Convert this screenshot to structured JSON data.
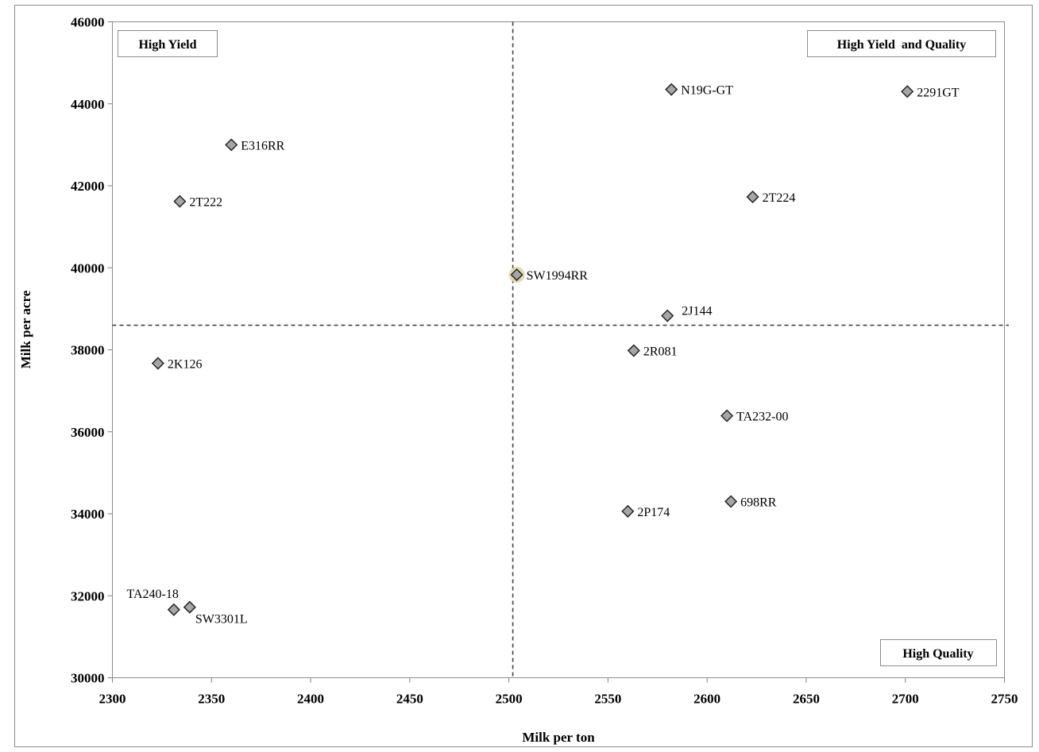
{
  "chart_data": {
    "type": "scatter",
    "xlabel": "Milk per ton",
    "ylabel": "Milk per acre",
    "xlim": [
      2300,
      2750
    ],
    "ylim": [
      30000,
      46000
    ],
    "xticks": [
      2300,
      2350,
      2400,
      2450,
      2500,
      2550,
      2600,
      2650,
      2700,
      2750
    ],
    "yticks": [
      30000,
      32000,
      34000,
      36000,
      38000,
      40000,
      42000,
      44000,
      46000
    ],
    "grid": false,
    "reference_lines": {
      "x": 2502,
      "y": 38600
    },
    "quadrant_labels": {
      "top_left": "High Yield",
      "top_right": "High Yield  and Quality",
      "bottom_right": "High Quality"
    },
    "marker": "diamond",
    "marker_color": "#a6a6a6",
    "highlight_color": "#e0d6a8",
    "points": [
      {
        "label": "N19G-GT",
        "x": 2582,
        "y": 44350,
        "label_pos": "right"
      },
      {
        "label": "2291GT",
        "x": 2701,
        "y": 44300,
        "label_pos": "right"
      },
      {
        "label": "E316RR",
        "x": 2360,
        "y": 43000,
        "label_pos": "right"
      },
      {
        "label": "2T222",
        "x": 2334,
        "y": 41620,
        "label_pos": "right"
      },
      {
        "label": "2T224",
        "x": 2623,
        "y": 41730,
        "label_pos": "right"
      },
      {
        "label": "SW1994RR",
        "x": 2504,
        "y": 39830,
        "label_pos": "right",
        "highlight": true
      },
      {
        "label": "2J144",
        "x": 2580,
        "y": 38830,
        "label_pos": "upper-right"
      },
      {
        "label": "2R081",
        "x": 2563,
        "y": 37980,
        "label_pos": "right"
      },
      {
        "label": "2K126",
        "x": 2323,
        "y": 37670,
        "label_pos": "right"
      },
      {
        "label": "TA232-00",
        "x": 2610,
        "y": 36390,
        "label_pos": "right"
      },
      {
        "label": "698RR",
        "x": 2612,
        "y": 34300,
        "label_pos": "right"
      },
      {
        "label": "2P174",
        "x": 2560,
        "y": 34060,
        "label_pos": "right"
      },
      {
        "label": "TA240-18",
        "x": 2331,
        "y": 31660,
        "label_pos": "upper-left"
      },
      {
        "label": "SW3301L",
        "x": 2339,
        "y": 31720,
        "label_pos": "lower-right"
      }
    ]
  }
}
